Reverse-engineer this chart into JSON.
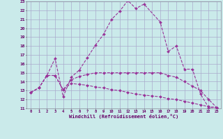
{
  "xlabel": "Windchill (Refroidissement éolien,°C)",
  "background_color": "#caeaea",
  "grid_color": "#aaaacc",
  "line_color": "#993399",
  "xlim": [
    -0.5,
    23.5
  ],
  "ylim": [
    11,
    23
  ],
  "yticks": [
    11,
    12,
    13,
    14,
    15,
    16,
    17,
    18,
    19,
    20,
    21,
    22,
    23
  ],
  "xticks": [
    0,
    1,
    2,
    3,
    4,
    5,
    6,
    7,
    8,
    9,
    10,
    11,
    12,
    13,
    14,
    15,
    16,
    17,
    18,
    19,
    20,
    21,
    22,
    23
  ],
  "series": [
    {
      "x": [
        0,
        1,
        2,
        3,
        4,
        5,
        6,
        7,
        8,
        9,
        10,
        11,
        12,
        13,
        14,
        16,
        17,
        18,
        19,
        20,
        21,
        22,
        23
      ],
      "y": [
        12.8,
        13.3,
        14.7,
        16.6,
        12.3,
        14.5,
        15.3,
        16.7,
        18.1,
        19.3,
        21.0,
        21.9,
        23.1,
        22.2,
        22.7,
        20.7,
        17.4,
        18.0,
        15.4,
        15.4,
        12.6,
        11.1,
        11.1
      ]
    },
    {
      "x": [
        0,
        1,
        2,
        3,
        4,
        5,
        6,
        7,
        8,
        9,
        10,
        11,
        12,
        13,
        14,
        15,
        16,
        17,
        18,
        19,
        20,
        21,
        22,
        23
      ],
      "y": [
        12.8,
        13.3,
        14.7,
        14.7,
        13.1,
        14.2,
        14.6,
        14.8,
        15.0,
        15.0,
        15.0,
        15.0,
        15.0,
        15.0,
        15.0,
        15.0,
        15.0,
        14.7,
        14.5,
        14.0,
        13.5,
        13.0,
        12.0,
        11.1
      ]
    },
    {
      "x": [
        0,
        1,
        2,
        3,
        4,
        5,
        6,
        7,
        8,
        9,
        10,
        11,
        12,
        13,
        14,
        15,
        16,
        17,
        18,
        19,
        20,
        21,
        22,
        23
      ],
      "y": [
        12.8,
        13.3,
        14.7,
        14.7,
        13.1,
        13.8,
        13.7,
        13.6,
        13.4,
        13.3,
        13.1,
        13.0,
        12.8,
        12.6,
        12.5,
        12.4,
        12.3,
        12.1,
        12.0,
        11.8,
        11.6,
        11.4,
        11.2,
        11.1
      ]
    }
  ]
}
